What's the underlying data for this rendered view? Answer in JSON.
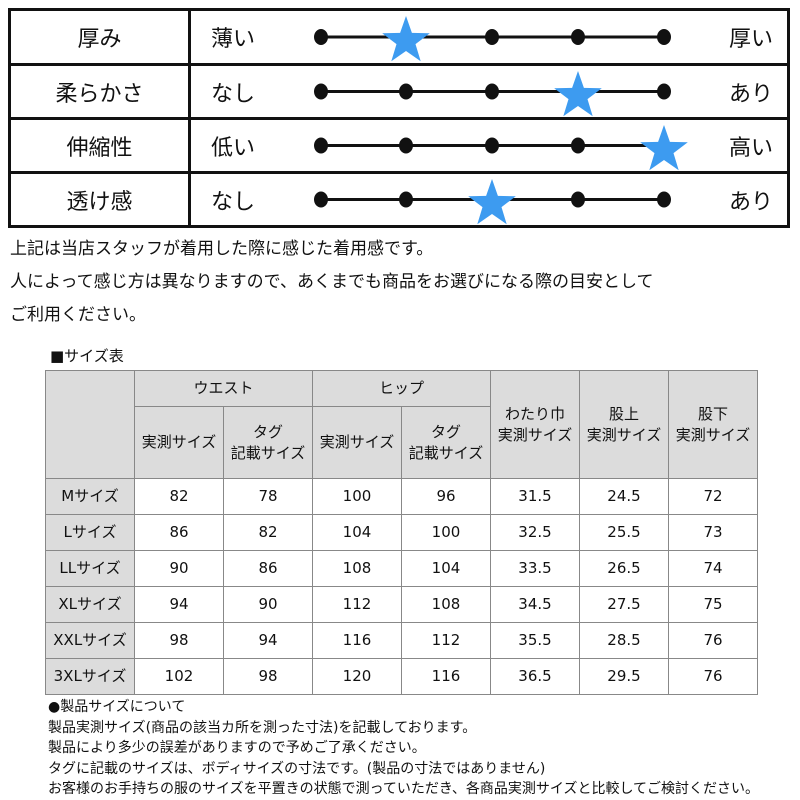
{
  "feel": {
    "accent": "#3d9bf0",
    "scale_points": 5,
    "rows": [
      {
        "name": "厚み",
        "low": "薄い",
        "high": "厚い",
        "level": 2
      },
      {
        "name": "柔らかさ",
        "low": "なし",
        "high": "あり",
        "level": 4
      },
      {
        "name": "伸縮性",
        "low": "低い",
        "high": "高い",
        "level": 5
      },
      {
        "name": "透け感",
        "low": "なし",
        "high": "あり",
        "level": 3
      }
    ]
  },
  "notes": [
    "上記は当店スタッフが着用した際に感じた着用感です。",
    "人によって感じ方は異なりますので、あくまでも商品をお選びになる際の目安として",
    "ご利用ください。"
  ],
  "size_table": {
    "title": "■サイズ表",
    "groups": {
      "waist": "ウエスト",
      "hip": "ヒップ"
    },
    "sub": {
      "measured": "実測サイズ",
      "tag1": "タグ",
      "tag2": "記載サイズ"
    },
    "thigh": [
      "わたり巾",
      "実測サイズ"
    ],
    "rise": [
      "股上",
      "実測サイズ"
    ],
    "inseam": [
      "股下",
      "実測サイズ"
    ],
    "rows": [
      [
        "Mサイズ",
        "82",
        "78",
        "100",
        "96",
        "31.5",
        "24.5",
        "72"
      ],
      [
        "Lサイズ",
        "86",
        "82",
        "104",
        "100",
        "32.5",
        "25.5",
        "73"
      ],
      [
        "LLサイズ",
        "90",
        "86",
        "108",
        "104",
        "33.5",
        "26.5",
        "74"
      ],
      [
        "XLサイズ",
        "94",
        "90",
        "112",
        "108",
        "34.5",
        "27.5",
        "75"
      ],
      [
        "XXLサイズ",
        "98",
        "94",
        "116",
        "112",
        "35.5",
        "28.5",
        "76"
      ],
      [
        "3XLサイズ",
        "102",
        "98",
        "120",
        "116",
        "36.5",
        "29.5",
        "76"
      ]
    ]
  },
  "footer": [
    "●製品サイズについて",
    "製品実測サイズ(商品の該当カ所を測った寸法)を記載しております。",
    "製品により多少の誤差がありますので予めご了承ください。",
    "タグに記載のサイズは、ボディサイズの寸法です。(製品の寸法ではありません)",
    "お客様のお手持ちの服のサイズを平置きの状態で測っていただき、各商品実測サイズと比較してご検討ください。"
  ]
}
